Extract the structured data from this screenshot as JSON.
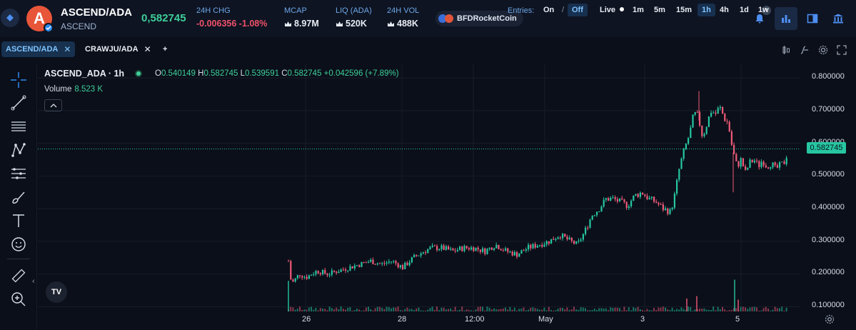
{
  "header": {
    "pair_title": "ASCEND/ADA",
    "pair_sub": "ASCEND",
    "logo_letter": "A",
    "price": "0,582745",
    "stats": [
      {
        "label": "24H CHG",
        "value": "-0.006356 -1.08%",
        "negative": true
      },
      {
        "label": "MCAP",
        "value": "8.97M"
      },
      {
        "label": "LIQ (ADA)",
        "value": "520K"
      },
      {
        "label": "24H VOL",
        "value": "488K"
      }
    ],
    "pill_label": "BFDRocketCoin",
    "badge_plus": "+"
  },
  "tabs": [
    {
      "label": "ASCEND/ADA",
      "close": "✕",
      "active": true
    },
    {
      "label": "CRAWJU/ADA",
      "close": "✕",
      "active": false
    }
  ],
  "add_tab": "+",
  "entries": {
    "label": "Entries:",
    "on": "On",
    "sep": "/",
    "off": "Off",
    "active": "Off"
  },
  "live": "Live",
  "timeframes": [
    "1m",
    "5m",
    "15m",
    "1h",
    "4h",
    "1d",
    "1w"
  ],
  "active_timeframe": "1h",
  "legend": {
    "title": "ASCEND_ADA · 1h",
    "ohlc": {
      "o_label": "O",
      "o": "0.540149",
      "h_label": "H",
      "h": "0.582745",
      "l_label": "L",
      "l": "0.539591",
      "c_label": "C",
      "c": "0.582745",
      "change": "+0.042596 (+7.89%)"
    },
    "volume_label": "Volume",
    "volume_value": "8.523 K"
  },
  "tv_logo": "TV",
  "chart_data": {
    "type": "candlestick",
    "title": "ASCEND_ADA · 1h",
    "y_ticks": [
      "0.800000",
      "0.700000",
      "0.600000",
      "0.500000",
      "0.400000",
      "0.300000",
      "0.200000",
      "0.100000"
    ],
    "x_ticks": [
      "26",
      "28",
      "12:00",
      "May",
      "3",
      "5"
    ],
    "ylim": [
      0.09,
      0.82
    ],
    "last_price": "0.582745",
    "colors": {
      "up": "#26c6a2",
      "down": "#ef5a78",
      "grid": "#161d2b",
      "price_line": "#26c6a2"
    },
    "series_path": [
      [
        0,
        0.24
      ],
      [
        4,
        0.17
      ],
      [
        8,
        0.18
      ],
      [
        15,
        0.2
      ],
      [
        25,
        0.19
      ],
      [
        40,
        0.21
      ],
      [
        55,
        0.2
      ],
      [
        70,
        0.21
      ],
      [
        85,
        0.22
      ],
      [
        100,
        0.23
      ],
      [
        115,
        0.24
      ],
      [
        130,
        0.23
      ],
      [
        145,
        0.24
      ],
      [
        160,
        0.22
      ],
      [
        175,
        0.25
      ],
      [
        190,
        0.27
      ],
      [
        200,
        0.28
      ],
      [
        215,
        0.28
      ],
      [
        230,
        0.27
      ],
      [
        245,
        0.28
      ],
      [
        260,
        0.28
      ],
      [
        275,
        0.27
      ],
      [
        290,
        0.29
      ],
      [
        305,
        0.27
      ],
      [
        320,
        0.26
      ],
      [
        335,
        0.28
      ],
      [
        350,
        0.29
      ],
      [
        365,
        0.3
      ],
      [
        380,
        0.32
      ],
      [
        395,
        0.3
      ],
      [
        405,
        0.29
      ],
      [
        415,
        0.33
      ],
      [
        425,
        0.38
      ],
      [
        435,
        0.4
      ],
      [
        445,
        0.43
      ],
      [
        455,
        0.43
      ],
      [
        465,
        0.42
      ],
      [
        475,
        0.41
      ],
      [
        485,
        0.44
      ],
      [
        495,
        0.45
      ],
      [
        505,
        0.43
      ],
      [
        515,
        0.42
      ],
      [
        525,
        0.4
      ],
      [
        535,
        0.39
      ],
      [
        540,
        0.43
      ],
      [
        548,
        0.53
      ],
      [
        556,
        0.59
      ],
      [
        562,
        0.63
      ],
      [
        568,
        0.69
      ],
      [
        574,
        0.68
      ],
      [
        580,
        0.62
      ],
      [
        586,
        0.66
      ],
      [
        592,
        0.7
      ],
      [
        598,
        0.69
      ],
      [
        604,
        0.71
      ],
      [
        610,
        0.68
      ],
      [
        616,
        0.66
      ],
      [
        622,
        0.58
      ],
      [
        628,
        0.53
      ],
      [
        634,
        0.55
      ],
      [
        640,
        0.51
      ],
      [
        646,
        0.54
      ],
      [
        652,
        0.55
      ],
      [
        658,
        0.53
      ],
      [
        664,
        0.55
      ],
      [
        670,
        0.53
      ],
      [
        676,
        0.54
      ],
      [
        682,
        0.52
      ],
      [
        688,
        0.53
      ],
      [
        694,
        0.54
      ],
      [
        700,
        0.58
      ]
    ],
    "spikes_high": [
      [
        575,
        0.76
      ],
      [
        623,
        0.45
      ]
    ],
    "volume_spikes": [
      [
        0,
        0.26
      ],
      [
        558,
        0.11
      ],
      [
        625,
        0.27
      ],
      [
        630,
        0.1
      ],
      [
        572,
        0.13
      ]
    ]
  }
}
